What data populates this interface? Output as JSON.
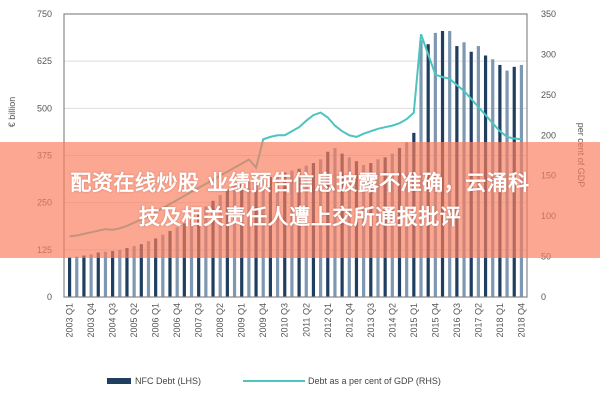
{
  "banner": {
    "line1": "配资在线炒股 业绩预告信息披露不准确，云涌科",
    "line2": "技及相关责任人遭上交所通报批评"
  },
  "chart_data": {
    "type": "bar+line",
    "title": "",
    "xlabel": "",
    "ylabel_left": "€ billion",
    "ylabel_right": "per cent of GDP",
    "ylim_left": [
      0,
      750
    ],
    "ylim_right": [
      0,
      350
    ],
    "yticks_left": [
      "0",
      "125",
      "250",
      "375",
      "500",
      "625",
      "750"
    ],
    "yticks_right": [
      "0",
      "50",
      "100",
      "150",
      "200",
      "250",
      "300",
      "350"
    ],
    "grid": true,
    "legend_position": "bottom",
    "tick_labels": [
      "2003 Q1",
      "2003 Q4",
      "2004 Q3",
      "2005 Q2",
      "2006 Q1",
      "2006 Q4",
      "2007 Q3",
      "2008 Q2",
      "2009 Q1",
      "2009 Q4",
      "2010 Q3",
      "2011 Q2",
      "2012 Q1",
      "2012 Q4",
      "2013 Q3",
      "2014 Q2",
      "2015 Q1",
      "2015 Q4",
      "2016 Q3",
      "2017 Q2",
      "2018 Q1",
      "2018 Q4"
    ],
    "x_start": "2003 Q1",
    "x_end": "2018 Q4",
    "series": [
      {
        "name": "NFC Debt (LHS)",
        "type": "bar",
        "axis": "left",
        "color": "#1f3f60",
        "color_alt": "#7d98b0",
        "values": [
          105,
          107,
          110,
          113,
          118,
          120,
          122,
          125,
          130,
          135,
          140,
          148,
          155,
          165,
          175,
          185,
          195,
          210,
          225,
          240,
          255,
          270,
          285,
          295,
          300,
          305,
          300,
          310,
          318,
          325,
          330,
          335,
          340,
          348,
          355,
          365,
          385,
          395,
          380,
          370,
          360,
          350,
          355,
          365,
          370,
          380,
          395,
          410,
          435,
          680,
          670,
          700,
          705,
          705,
          665,
          675,
          650,
          665,
          640,
          630,
          615,
          600,
          610,
          615
        ]
      },
      {
        "name": "Debt as a per cent of GDP (RHS)",
        "type": "line",
        "axis": "right",
        "color": "#4cc4c0",
        "values": [
          75,
          76,
          78,
          80,
          82,
          84,
          83,
          85,
          88,
          92,
          96,
          100,
          105,
          110,
          115,
          120,
          125,
          130,
          135,
          140,
          145,
          150,
          155,
          160,
          165,
          170,
          160,
          195,
          198,
          200,
          200,
          205,
          210,
          218,
          225,
          228,
          222,
          212,
          205,
          200,
          198,
          202,
          205,
          208,
          210,
          212,
          215,
          220,
          228,
          325,
          300,
          275,
          272,
          270,
          262,
          255,
          245,
          235,
          225,
          215,
          205,
          198,
          196,
          195
        ]
      }
    ]
  }
}
